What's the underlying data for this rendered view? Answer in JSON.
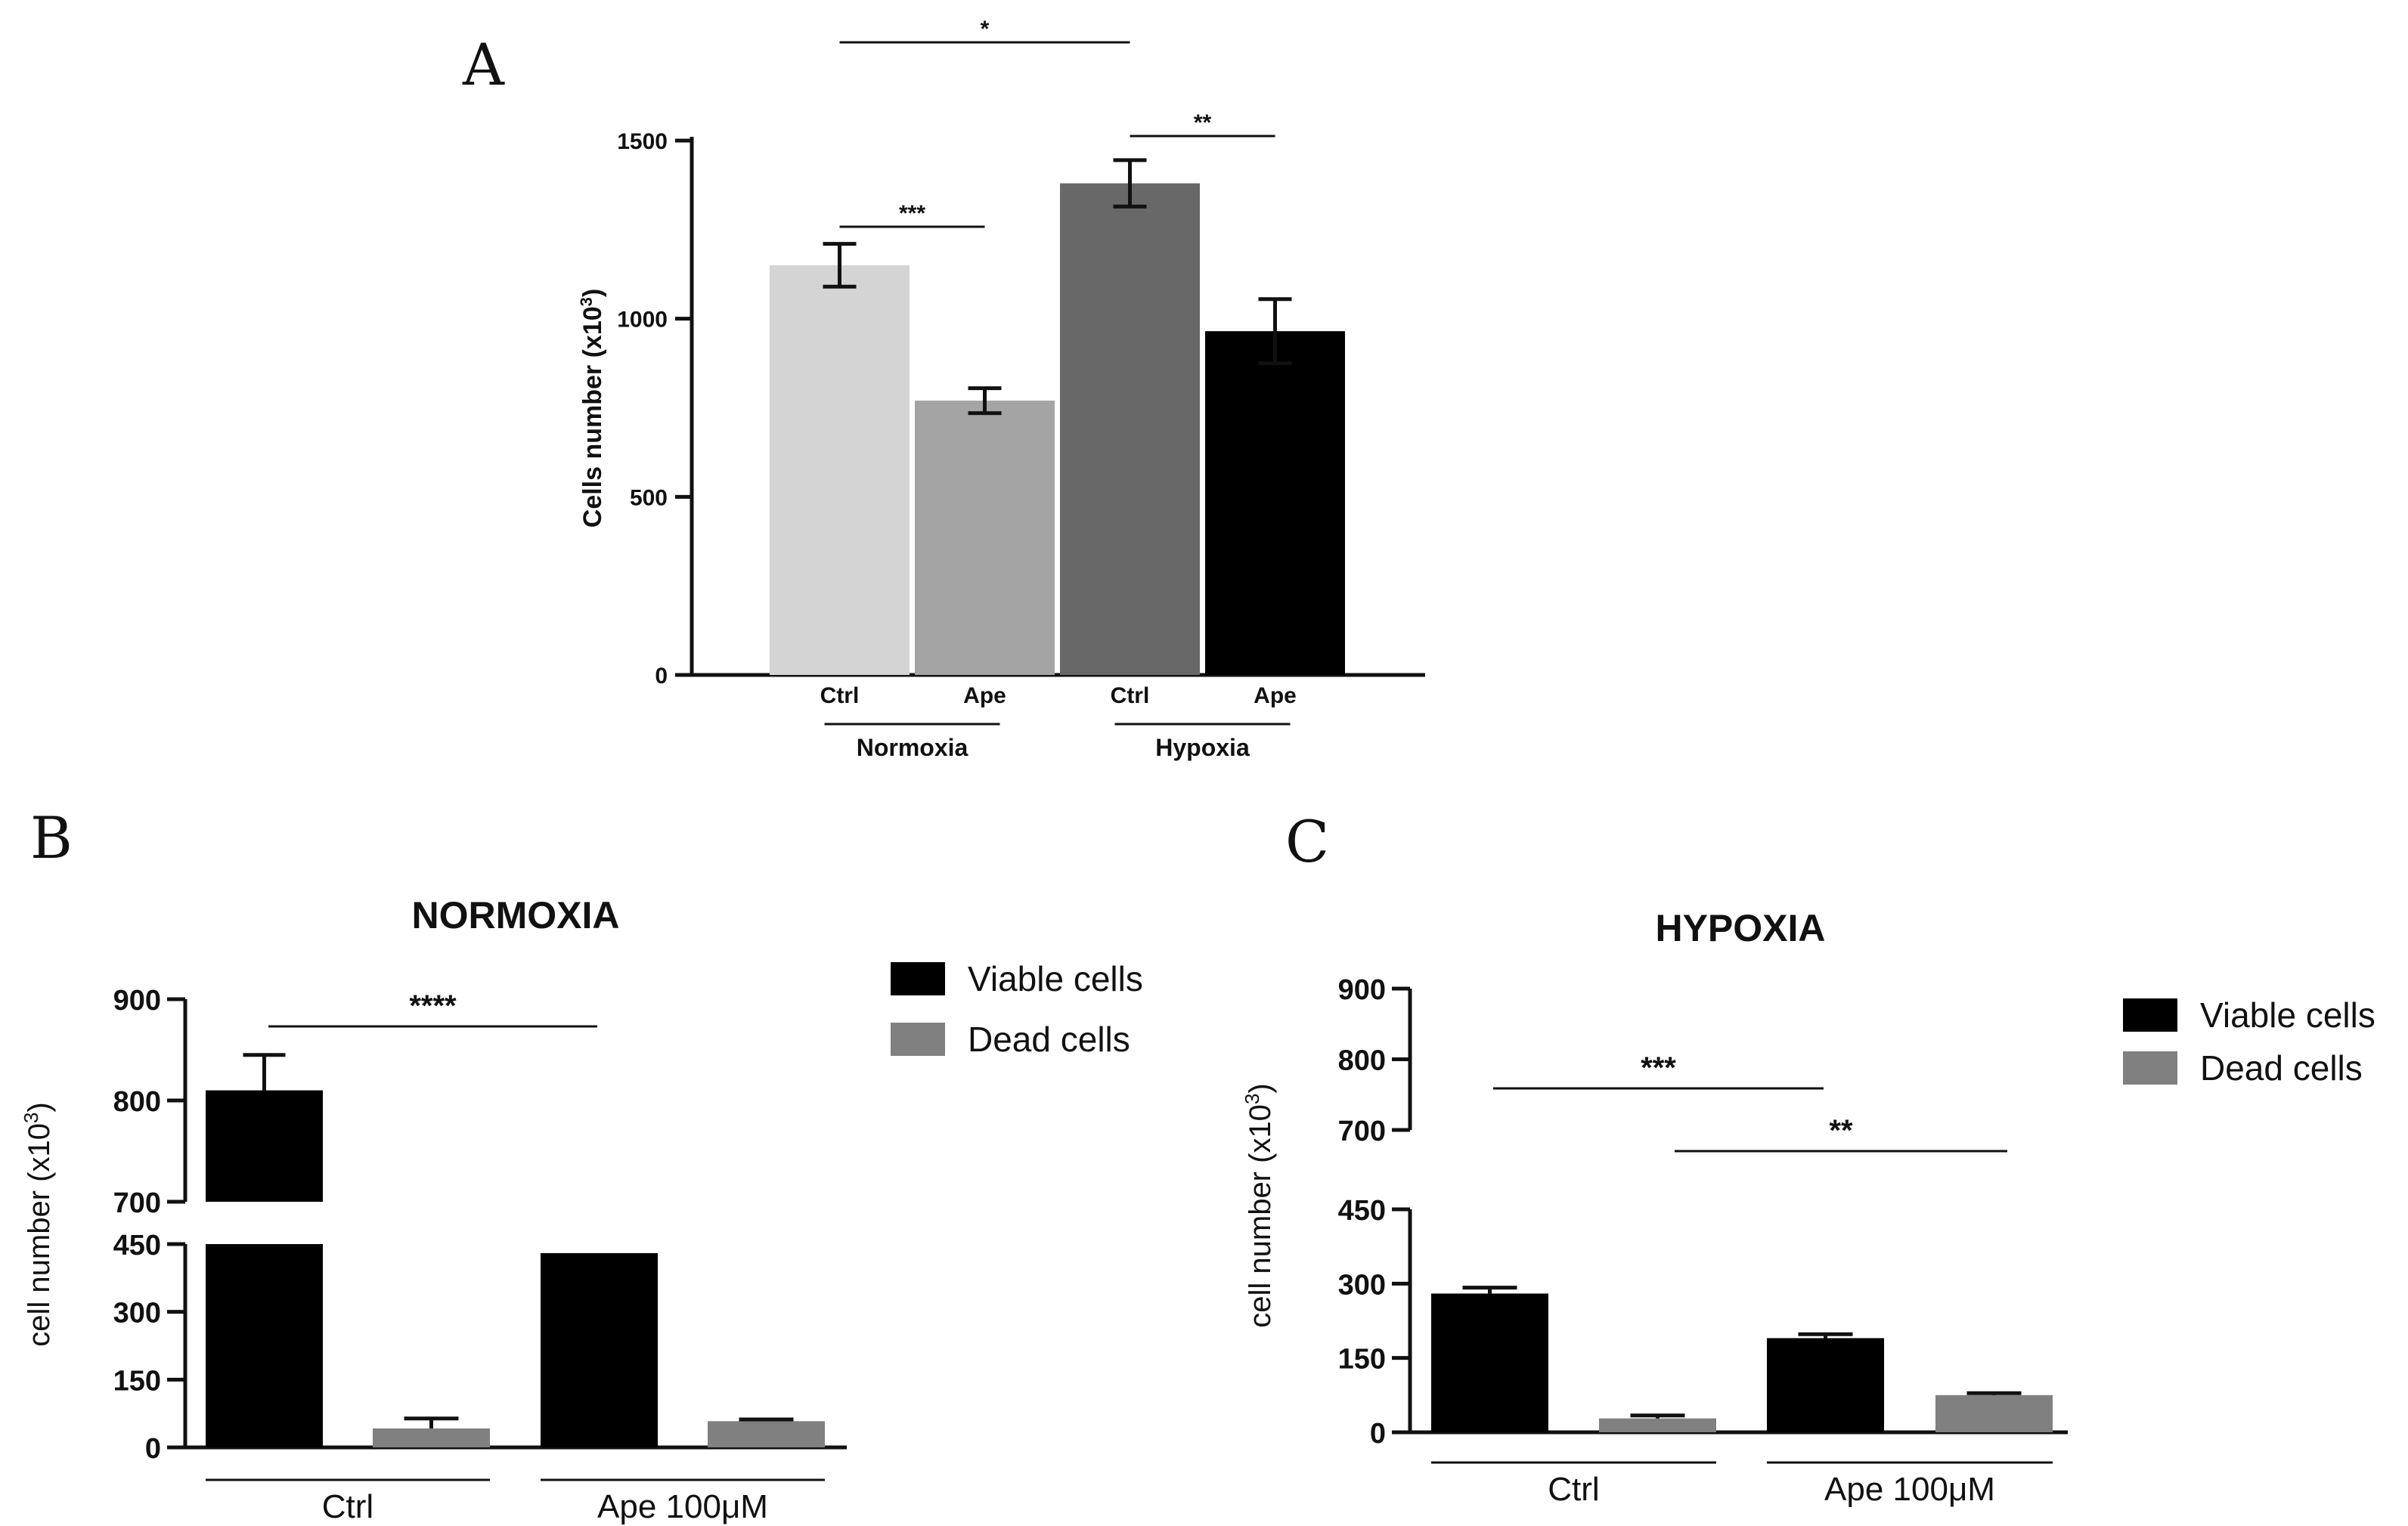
{
  "panels": {
    "a_label": "A",
    "b_label": "B",
    "c_label": "C"
  },
  "chart_data": [
    {
      "id": "A",
      "type": "bar",
      "title": "",
      "ylabel": "Cells number (x10",
      "ylabel_sup": "3",
      "ylabel_tail": ")",
      "ylim": [
        0,
        1500
      ],
      "yticks": [
        0,
        500,
        1000,
        1500
      ],
      "categories": [
        "Ctrl",
        "Ape",
        "Ctrl",
        "Ape"
      ],
      "groups": [
        {
          "label": "Normoxia",
          "indices": [
            0,
            1
          ]
        },
        {
          "label": "Hypoxia",
          "indices": [
            2,
            3
          ]
        }
      ],
      "values": [
        1150,
        770,
        1380,
        965
      ],
      "errors": [
        60,
        35,
        65,
        90
      ],
      "colors": [
        "#d4d4d4",
        "#a4a4a4",
        "#686868",
        "#000000"
      ],
      "significance": [
        {
          "from": 0,
          "to": 1,
          "label": "***"
        },
        {
          "from": 2,
          "to": 3,
          "label": "**"
        },
        {
          "from": 0,
          "to": 2,
          "label": "*"
        }
      ]
    },
    {
      "id": "B",
      "type": "bar",
      "title": "NORMOXIA",
      "ylabel": "cell number (x10",
      "ylabel_sup": "3",
      "ylabel_tail": ")",
      "axis_break": {
        "lower": [
          0,
          450
        ],
        "upper": [
          700,
          900
        ]
      },
      "yticks_lower": [
        0,
        150,
        300,
        450
      ],
      "yticks_upper": [
        700,
        800,
        900
      ],
      "categories": [
        "Ctrl",
        "Ape 100μM"
      ],
      "series": [
        {
          "name": "Viable cells",
          "color": "#000000",
          "values": [
            810,
            430
          ],
          "errors": [
            35,
            0
          ]
        },
        {
          "name": "Dead cells",
          "color": "#808080",
          "values": [
            42,
            58
          ],
          "errors": [
            22,
            4
          ]
        }
      ],
      "significance": [
        {
          "label": "****",
          "between": "Viable cells Ctrl vs Viable cells Ape 100μM"
        }
      ]
    },
    {
      "id": "C",
      "type": "bar",
      "title": "HYPOXIA",
      "ylabel": "cell number (x10",
      "ylabel_sup": "3",
      "ylabel_tail": ")",
      "axis_break": {
        "lower": [
          0,
          450
        ],
        "upper": [
          700,
          900
        ]
      },
      "yticks_lower": [
        0,
        150,
        300,
        450
      ],
      "yticks_upper": [
        700,
        800,
        900
      ],
      "categories": [
        "Ctrl",
        "Ape 100μM"
      ],
      "series": [
        {
          "name": "Viable cells",
          "color": "#000000",
          "values": [
            280,
            190
          ],
          "errors": [
            12,
            8
          ]
        },
        {
          "name": "Dead cells",
          "color": "#808080",
          "values": [
            28,
            75
          ],
          "errors": [
            6,
            4
          ]
        }
      ],
      "significance": [
        {
          "label": "***",
          "between": "Viable cells Ctrl vs Viable cells Ape 100μM"
        },
        {
          "label": "**",
          "between": "Dead cells Ctrl vs Dead cells Ape 100μM"
        }
      ]
    }
  ]
}
